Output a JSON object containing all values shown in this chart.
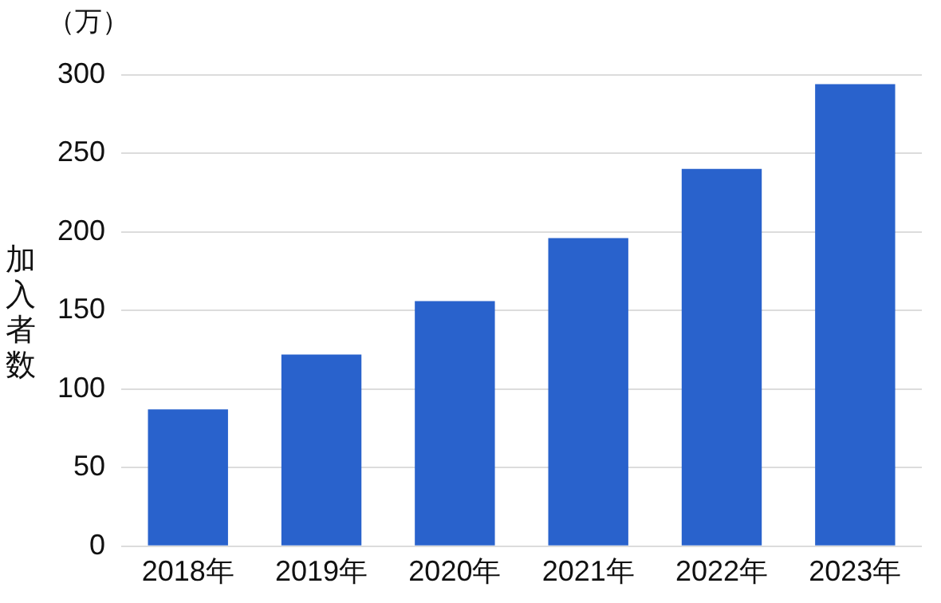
{
  "chart_data": {
    "type": "bar",
    "ylabel": "加入者数",
    "annotations": [
      "（万）"
    ],
    "categories": [
      "2018年",
      "2019年",
      "2020年",
      "2021年",
      "2022年",
      "2023年"
    ],
    "values": [
      87,
      122,
      156,
      196,
      240,
      294
    ],
    "color": "#2962cc",
    "ylim": [
      0,
      300
    ],
    "yticks": [
      0,
      50,
      100,
      150,
      200,
      250,
      300
    ],
    "grid": "y"
  }
}
